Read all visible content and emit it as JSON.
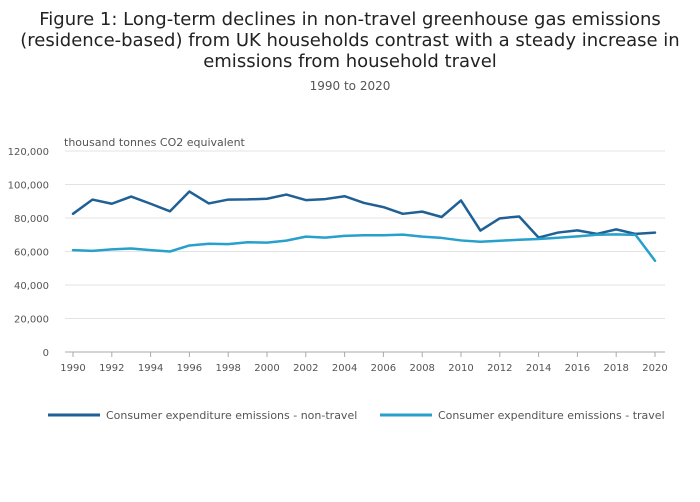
{
  "chart_data": {
    "type": "line",
    "title_lines": [
      "Figure 1: Long-term declines in non-travel greenhouse gas emissions",
      "(residence-based) from UK households contrast with a steady increase in",
      "emissions from household travel"
    ],
    "subtitle": "1990 to 2020",
    "ylabel": "thousand tonnes CO2 equivalent",
    "xlabel": "",
    "ylim": [
      0,
      120000
    ],
    "xlim": [
      1990,
      2020
    ],
    "y_ticks": [
      0,
      20000,
      40000,
      60000,
      80000,
      100000,
      120000
    ],
    "y_tick_labels": [
      "0",
      "20,000",
      "40,000",
      "60,000",
      "80,000",
      "100,000",
      "120,000"
    ],
    "x_ticks": [
      1990,
      1992,
      1994,
      1996,
      1998,
      2000,
      2002,
      2004,
      2006,
      2008,
      2010,
      2012,
      2014,
      2016,
      2018,
      2020
    ],
    "x_tick_labels": [
      "1990",
      "1992",
      "1994",
      "1996",
      "1998",
      "2000",
      "2002",
      "2004",
      "2006",
      "2008",
      "2010",
      "2012",
      "2014",
      "2016",
      "2018",
      "2020"
    ],
    "grid": true,
    "legend_position": "bottom",
    "x": [
      1990,
      1991,
      1992,
      1993,
      1994,
      1995,
      1996,
      1997,
      1998,
      1999,
      2000,
      2001,
      2002,
      2003,
      2004,
      2005,
      2006,
      2007,
      2008,
      2009,
      2010,
      2011,
      2012,
      2013,
      2014,
      2015,
      2016,
      2017,
      2018,
      2019,
      2020
    ],
    "series": [
      {
        "name": "Consumer expenditure emissions - non-travel",
        "color": "#206095",
        "values": [
          82500,
          91000,
          88500,
          92800,
          88500,
          84000,
          95800,
          88700,
          91000,
          91100,
          91500,
          94000,
          90700,
          91300,
          93000,
          89000,
          86500,
          82500,
          83800,
          80600,
          90500,
          72500,
          79800,
          80900,
          68300,
          71300,
          72600,
          70500,
          73200,
          70500,
          71300
        ]
      },
      {
        "name": "Consumer expenditure emissions - travel",
        "color": "#27a0cc",
        "values": [
          60800,
          60400,
          61300,
          61800,
          60800,
          60000,
          63600,
          64600,
          64400,
          65500,
          65300,
          66500,
          68900,
          68300,
          69300,
          69700,
          69700,
          70100,
          68900,
          68100,
          66600,
          65800,
          66400,
          67000,
          67500,
          68200,
          69000,
          70000,
          70200,
          69900,
          54500
        ]
      }
    ]
  }
}
